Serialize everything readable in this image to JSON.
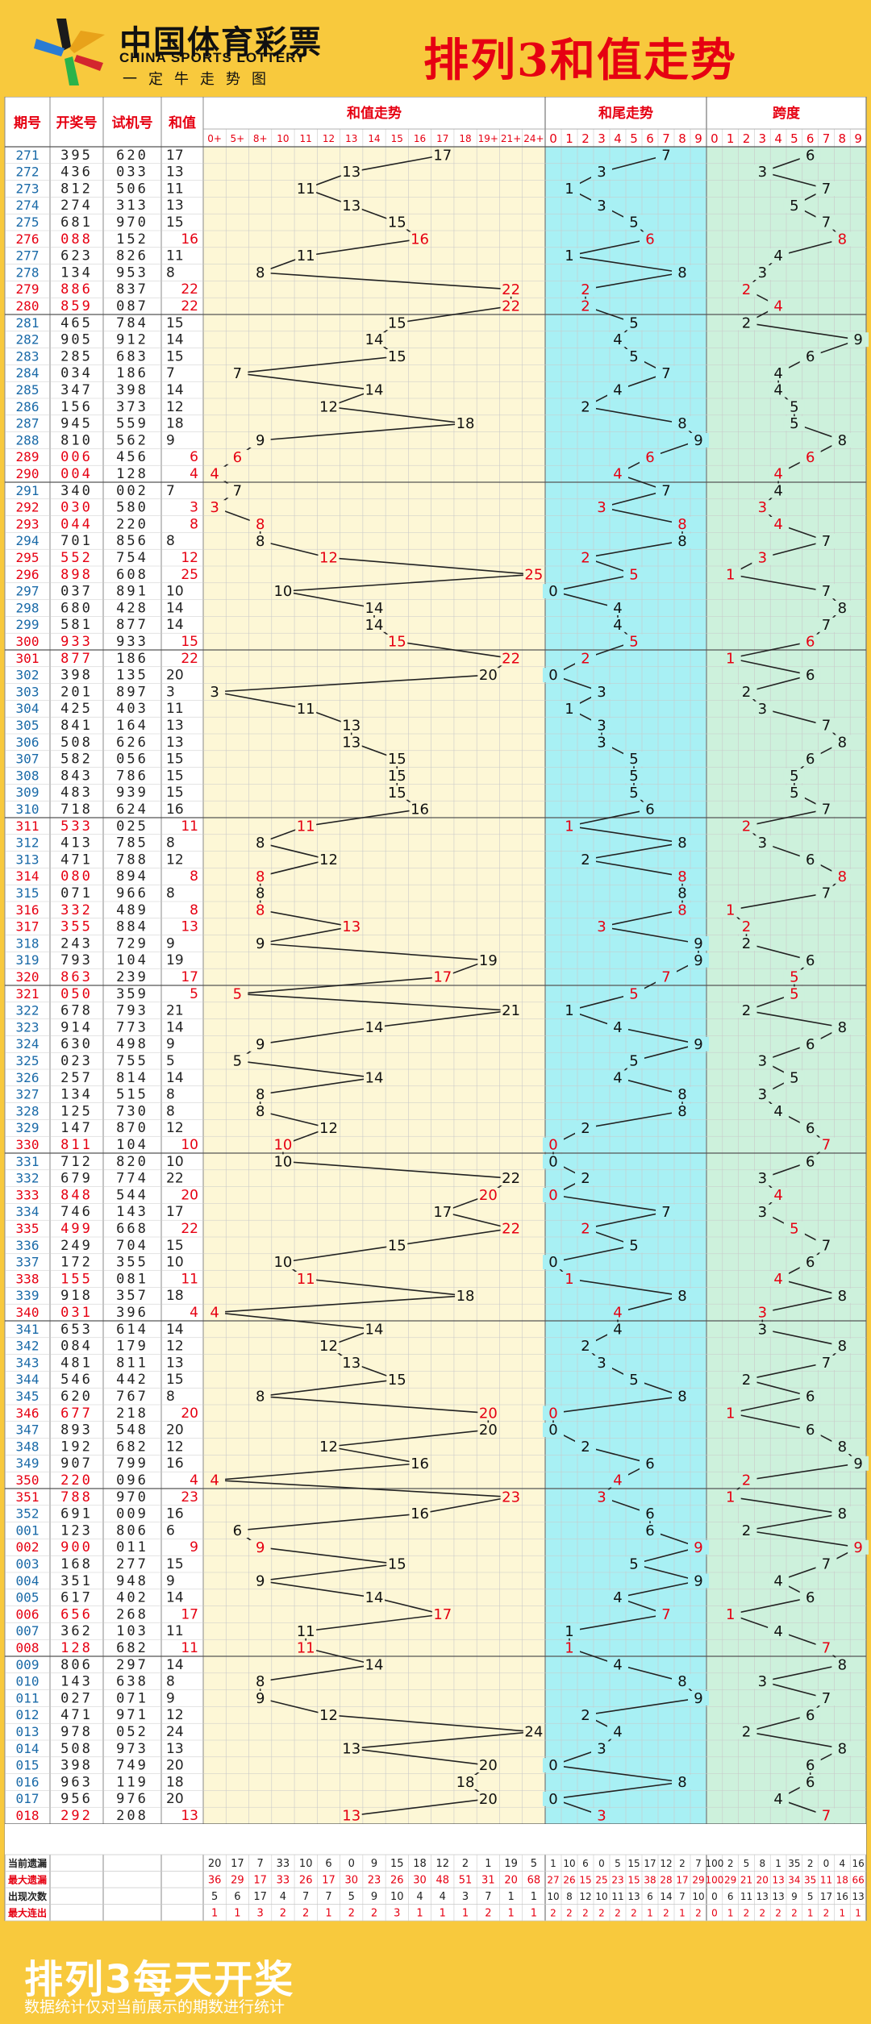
{
  "brand": {
    "cn": "中国体育彩票",
    "en": "CHINA SPORTS LOTTERY",
    "sub": "一定牛走势图"
  },
  "title": "排列3和值走势",
  "headers": {
    "period": "期号",
    "draw": "开奖号",
    "trial": "试机号",
    "sum": "和值",
    "sum_trend": "和值走势",
    "tail_trend": "和尾走势",
    "span_trend": "跨度"
  },
  "sum_columns": [
    "0+",
    "5+",
    "8+",
    "10",
    "11",
    "12",
    "13",
    "14",
    "15",
    "16",
    "17",
    "18",
    "19+",
    "21+",
    "24+"
  ],
  "digit_columns": [
    "0",
    "1",
    "2",
    "3",
    "4",
    "5",
    "6",
    "7",
    "8",
    "9"
  ],
  "rows": [
    [
      "271",
      "395",
      "620",
      17
    ],
    [
      "272",
      "436",
      "033",
      13
    ],
    [
      "273",
      "812",
      "506",
      11
    ],
    [
      "274",
      "274",
      "313",
      13
    ],
    [
      "275",
      "681",
      "970",
      15
    ],
    [
      "276",
      "088",
      "152",
      16
    ],
    [
      "277",
      "623",
      "826",
      11
    ],
    [
      "278",
      "134",
      "953",
      8
    ],
    [
      "279",
      "886",
      "837",
      22
    ],
    [
      "280",
      "859",
      "087",
      22
    ],
    [
      "281",
      "465",
      "784",
      15
    ],
    [
      "282",
      "905",
      "912",
      14
    ],
    [
      "283",
      "285",
      "683",
      15
    ],
    [
      "284",
      "034",
      "186",
      7
    ],
    [
      "285",
      "347",
      "398",
      14
    ],
    [
      "286",
      "156",
      "373",
      12
    ],
    [
      "287",
      "945",
      "559",
      18
    ],
    [
      "288",
      "810",
      "562",
      9
    ],
    [
      "289",
      "006",
      "456",
      6
    ],
    [
      "290",
      "004",
      "128",
      4
    ],
    [
      "291",
      "340",
      "002",
      7
    ],
    [
      "292",
      "030",
      "580",
      3
    ],
    [
      "293",
      "044",
      "220",
      8
    ],
    [
      "294",
      "701",
      "856",
      8
    ],
    [
      "295",
      "552",
      "754",
      12
    ],
    [
      "296",
      "898",
      "608",
      25
    ],
    [
      "297",
      "037",
      "891",
      10
    ],
    [
      "298",
      "680",
      "428",
      14
    ],
    [
      "299",
      "581",
      "877",
      14
    ],
    [
      "300",
      "933",
      "933",
      15
    ],
    [
      "301",
      "877",
      "186",
      22
    ],
    [
      "302",
      "398",
      "135",
      20
    ],
    [
      "303",
      "201",
      "897",
      3
    ],
    [
      "304",
      "425",
      "403",
      11
    ],
    [
      "305",
      "841",
      "164",
      13
    ],
    [
      "306",
      "508",
      "626",
      13
    ],
    [
      "307",
      "582",
      "056",
      15
    ],
    [
      "308",
      "843",
      "786",
      15
    ],
    [
      "309",
      "483",
      "939",
      15
    ],
    [
      "310",
      "718",
      "624",
      16
    ],
    [
      "311",
      "533",
      "025",
      11
    ],
    [
      "312",
      "413",
      "785",
      8
    ],
    [
      "313",
      "471",
      "788",
      12
    ],
    [
      "314",
      "080",
      "894",
      8
    ],
    [
      "315",
      "071",
      "966",
      8
    ],
    [
      "316",
      "332",
      "489",
      8
    ],
    [
      "317",
      "355",
      "884",
      13
    ],
    [
      "318",
      "243",
      "729",
      9
    ],
    [
      "319",
      "793",
      "104",
      19
    ],
    [
      "320",
      "863",
      "239",
      17
    ],
    [
      "321",
      "050",
      "359",
      5
    ],
    [
      "322",
      "678",
      "793",
      21
    ],
    [
      "323",
      "914",
      "773",
      14
    ],
    [
      "324",
      "630",
      "498",
      9
    ],
    [
      "325",
      "023",
      "755",
      5
    ],
    [
      "326",
      "257",
      "814",
      14
    ],
    [
      "327",
      "134",
      "515",
      8
    ],
    [
      "328",
      "125",
      "730",
      8
    ],
    [
      "329",
      "147",
      "870",
      12
    ],
    [
      "330",
      "811",
      "104",
      10
    ],
    [
      "331",
      "712",
      "820",
      10
    ],
    [
      "332",
      "679",
      "774",
      22
    ],
    [
      "333",
      "848",
      "544",
      20
    ],
    [
      "334",
      "746",
      "143",
      17
    ],
    [
      "335",
      "499",
      "668",
      22
    ],
    [
      "336",
      "249",
      "704",
      15
    ],
    [
      "337",
      "172",
      "355",
      10
    ],
    [
      "338",
      "155",
      "081",
      11
    ],
    [
      "339",
      "918",
      "357",
      18
    ],
    [
      "340",
      "031",
      "396",
      4
    ],
    [
      "341",
      "653",
      "614",
      14
    ],
    [
      "342",
      "084",
      "179",
      12
    ],
    [
      "343",
      "481",
      "811",
      13
    ],
    [
      "344",
      "546",
      "442",
      15
    ],
    [
      "345",
      "620",
      "767",
      8
    ],
    [
      "346",
      "677",
      "218",
      20
    ],
    [
      "347",
      "893",
      "548",
      20
    ],
    [
      "348",
      "192",
      "682",
      12
    ],
    [
      "349",
      "907",
      "799",
      16
    ],
    [
      "350",
      "220",
      "096",
      4
    ],
    [
      "351",
      "788",
      "970",
      23
    ],
    [
      "352",
      "691",
      "009",
      16
    ],
    [
      "001",
      "123",
      "806",
      6
    ],
    [
      "002",
      "900",
      "011",
      9
    ],
    [
      "003",
      "168",
      "277",
      15
    ],
    [
      "004",
      "351",
      "948",
      9
    ],
    [
      "005",
      "617",
      "402",
      14
    ],
    [
      "006",
      "656",
      "268",
      17
    ],
    [
      "007",
      "362",
      "103",
      11
    ],
    [
      "008",
      "128",
      "682",
      11
    ],
    [
      "009",
      "806",
      "297",
      14
    ],
    [
      "010",
      "143",
      "638",
      8
    ],
    [
      "011",
      "027",
      "071",
      9
    ],
    [
      "012",
      "471",
      "971",
      12
    ],
    [
      "013",
      "978",
      "052",
      24
    ],
    [
      "014",
      "508",
      "973",
      13
    ],
    [
      "015",
      "398",
      "749",
      20
    ],
    [
      "016",
      "963",
      "119",
      18
    ],
    [
      "017",
      "956",
      "976",
      20
    ],
    [
      "018",
      "292",
      "208",
      13
    ]
  ],
  "stats": {
    "labels": [
      "当前遗漏",
      "最大遗漏",
      "出现次数",
      "最大连出"
    ],
    "label_colors": [
      "#222222",
      "#e60012",
      "#222222",
      "#e60012"
    ],
    "sum": [
      [
        20,
        17,
        7,
        33,
        10,
        6,
        0,
        9,
        15,
        18,
        12,
        2,
        1,
        19,
        5
      ],
      [
        36,
        29,
        17,
        33,
        26,
        17,
        30,
        23,
        26,
        30,
        48,
        51,
        31,
        20,
        68
      ],
      [
        5,
        6,
        17,
        4,
        7,
        7,
        5,
        9,
        10,
        4,
        4,
        3,
        7,
        1,
        1
      ],
      [
        1,
        1,
        3,
        2,
        2,
        1,
        2,
        2,
        3,
        1,
        1,
        1,
        2,
        1,
        1
      ]
    ],
    "tail": [
      [
        1,
        10,
        6,
        0,
        5,
        15,
        17,
        12,
        2,
        7
      ],
      [
        27,
        26,
        15,
        25,
        23,
        15,
        38,
        28,
        17,
        29
      ],
      [
        10,
        8,
        12,
        10,
        11,
        13,
        6,
        14,
        7,
        10
      ],
      [
        2,
        2,
        2,
        2,
        2,
        2,
        1,
        2,
        1,
        2
      ]
    ],
    "span": [
      [
        100,
        2,
        5,
        8,
        1,
        35,
        2,
        0,
        4,
        16
      ],
      [
        100,
        29,
        21,
        20,
        13,
        34,
        35,
        11,
        18,
        66
      ],
      [
        0,
        6,
        11,
        13,
        13,
        9,
        5,
        17,
        16,
        13
      ],
      [
        0,
        1,
        2,
        2,
        2,
        2,
        1,
        2,
        1,
        1
      ]
    ]
  },
  "footer": {
    "big": "排列3每天开奖",
    "small": "数据统计仅对当前展示的期数进行统计"
  },
  "colors": {
    "bg": "#f8c93d",
    "sum_bg": "#fdf7d6",
    "tail_bg": "#a8f0f4",
    "span_bg": "#cdf1dc",
    "red": "#e60012",
    "grid": "#c9c9c9",
    "header_text": "#e60012"
  },
  "chart_data": {
    "type": "line",
    "title": "排列3和值走势",
    "series": [
      {
        "name": "和值走势"
      },
      {
        "name": "和尾走势"
      },
      {
        "name": "跨度"
      }
    ]
  }
}
